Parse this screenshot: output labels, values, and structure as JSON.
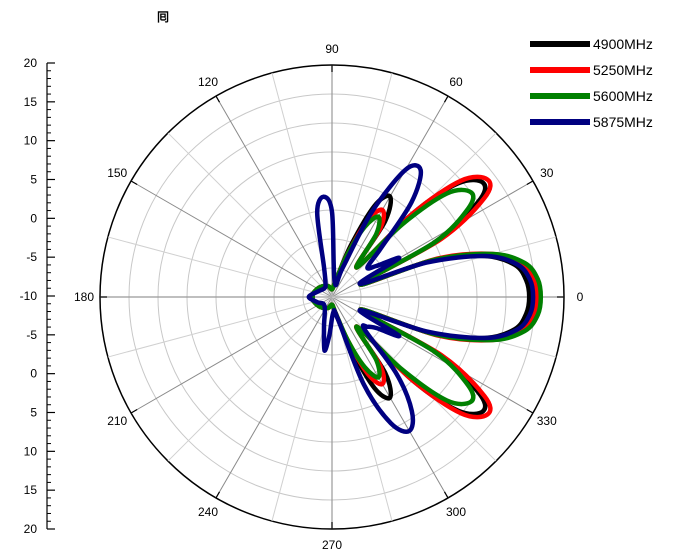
{
  "corner_glyph": "囘",
  "chart_data": {
    "type": "polar-line",
    "radial_axis": {
      "ticks": [
        -10,
        -5,
        0,
        5,
        10,
        15,
        20
      ],
      "range": [
        -10,
        20
      ],
      "tick_labels_left": [
        "20",
        "15",
        "10",
        "5",
        "0",
        "-5",
        "-10",
        "-5",
        "0",
        "5",
        "10",
        "15",
        "20"
      ]
    },
    "angular_axis": {
      "ticks": [
        0,
        30,
        60,
        90,
        120,
        150,
        180,
        210,
        240,
        270,
        300,
        330
      ],
      "unit": "degrees"
    },
    "grid": true,
    "legend_position": "top-right",
    "series": [
      {
        "name": "4900MHz",
        "color": "#000000",
        "points": [
          [
            0,
            15.5
          ],
          [
            5,
            15.2
          ],
          [
            10,
            14
          ],
          [
            15,
            10.5
          ],
          [
            20,
            4
          ],
          [
            24,
            -6
          ],
          [
            28,
            5
          ],
          [
            33,
            12.5
          ],
          [
            37,
            14.5
          ],
          [
            42,
            12
          ],
          [
            46,
            5
          ],
          [
            50,
            -5
          ],
          [
            55,
            2
          ],
          [
            60,
            5
          ],
          [
            65,
            3
          ],
          [
            70,
            -3
          ],
          [
            78,
            -8
          ],
          [
            90,
            -9
          ],
          [
            110,
            -8.5
          ],
          [
            140,
            -8
          ],
          [
            170,
            -7.5
          ],
          [
            180,
            -7.5
          ],
          [
            190,
            -7.5
          ],
          [
            220,
            -8
          ],
          [
            250,
            -8.5
          ],
          [
            270,
            -9
          ],
          [
            282,
            -8
          ],
          [
            290,
            -3
          ],
          [
            295,
            3
          ],
          [
            300,
            5
          ],
          [
            305,
            2
          ],
          [
            310,
            -5
          ],
          [
            314,
            5
          ],
          [
            318,
            12
          ],
          [
            323,
            14.5
          ],
          [
            327,
            12.5
          ],
          [
            332,
            5
          ],
          [
            336,
            -6
          ],
          [
            340,
            4
          ],
          [
            345,
            10.5
          ],
          [
            350,
            14
          ],
          [
            355,
            15.2
          ],
          [
            360,
            15.5
          ]
        ]
      },
      {
        "name": "5250MHz",
        "color": "#ff0000",
        "points": [
          [
            0,
            16.5
          ],
          [
            5,
            16.2
          ],
          [
            10,
            15
          ],
          [
            15,
            11.5
          ],
          [
            20,
            4.5
          ],
          [
            24,
            -6
          ],
          [
            28,
            6
          ],
          [
            33,
            13.5
          ],
          [
            37,
            15.2
          ],
          [
            42,
            12.5
          ],
          [
            46,
            5
          ],
          [
            50,
            -5
          ],
          [
            55,
            1
          ],
          [
            60,
            3
          ],
          [
            65,
            1
          ],
          [
            70,
            -4
          ],
          [
            78,
            -8
          ],
          [
            90,
            -9
          ],
          [
            110,
            -8.5
          ],
          [
            140,
            -8
          ],
          [
            170,
            -7.5
          ],
          [
            180,
            -7.5
          ],
          [
            190,
            -7.5
          ],
          [
            220,
            -8
          ],
          [
            250,
            -8.5
          ],
          [
            270,
            -9
          ],
          [
            282,
            -8
          ],
          [
            290,
            -4
          ],
          [
            295,
            1
          ],
          [
            300,
            3
          ],
          [
            305,
            1
          ],
          [
            310,
            -5
          ],
          [
            314,
            5
          ],
          [
            318,
            12.5
          ],
          [
            323,
            15.2
          ],
          [
            327,
            13.5
          ],
          [
            332,
            6
          ],
          [
            336,
            -6
          ],
          [
            340,
            4.5
          ],
          [
            345,
            11.5
          ],
          [
            350,
            15
          ],
          [
            355,
            16.2
          ],
          [
            360,
            16.5
          ]
        ]
      },
      {
        "name": "5600MHz",
        "color": "#008000",
        "points": [
          [
            0,
            17
          ],
          [
            5,
            16.7
          ],
          [
            10,
            15.3
          ],
          [
            15,
            11.5
          ],
          [
            20,
            4
          ],
          [
            24,
            -6
          ],
          [
            28,
            5
          ],
          [
            33,
            11
          ],
          [
            37,
            12.5
          ],
          [
            42,
            10
          ],
          [
            46,
            3
          ],
          [
            50,
            -5
          ],
          [
            55,
            0
          ],
          [
            60,
            2
          ],
          [
            65,
            0
          ],
          [
            70,
            -4
          ],
          [
            78,
            -8
          ],
          [
            90,
            -9
          ],
          [
            110,
            -8.5
          ],
          [
            140,
            -8
          ],
          [
            170,
            -7.5
          ],
          [
            180,
            -7.5
          ],
          [
            190,
            -7.5
          ],
          [
            220,
            -8
          ],
          [
            250,
            -8.5
          ],
          [
            270,
            -9
          ],
          [
            282,
            -8
          ],
          [
            290,
            -4
          ],
          [
            295,
            0
          ],
          [
            300,
            2
          ],
          [
            305,
            0
          ],
          [
            310,
            -5
          ],
          [
            314,
            3
          ],
          [
            318,
            10
          ],
          [
            323,
            12.5
          ],
          [
            327,
            11
          ],
          [
            332,
            5
          ],
          [
            336,
            -6
          ],
          [
            340,
            4
          ],
          [
            345,
            11.5
          ],
          [
            350,
            15.3
          ],
          [
            355,
            16.7
          ],
          [
            360,
            17
          ]
        ]
      },
      {
        "name": "5875MHz",
        "color": "#000080",
        "points": [
          [
            0,
            16
          ],
          [
            5,
            15.7
          ],
          [
            10,
            14.3
          ],
          [
            15,
            10.5
          ],
          [
            20,
            3
          ],
          [
            25,
            -6
          ],
          [
            30,
            0
          ],
          [
            35,
            -3
          ],
          [
            40,
            -4
          ],
          [
            45,
            -1
          ],
          [
            50,
            6
          ],
          [
            55,
            10
          ],
          [
            60,
            9
          ],
          [
            65,
            2
          ],
          [
            70,
            -6
          ],
          [
            80,
            -8
          ],
          [
            90,
            1
          ],
          [
            95,
            3
          ],
          [
            100,
            1
          ],
          [
            105,
            -6
          ],
          [
            115,
            -8
          ],
          [
            130,
            -8.5
          ],
          [
            160,
            -8
          ],
          [
            180,
            -7
          ],
          [
            200,
            -8
          ],
          [
            230,
            -8.5
          ],
          [
            255,
            -6
          ],
          [
            262,
            -3
          ],
          [
            266,
            -5
          ],
          [
            275,
            -8
          ],
          [
            285,
            -7
          ],
          [
            290,
            2
          ],
          [
            295,
            8
          ],
          [
            300,
            10
          ],
          [
            305,
            8
          ],
          [
            310,
            3
          ],
          [
            315,
            -4
          ],
          [
            320,
            -4
          ],
          [
            325,
            -3
          ],
          [
            330,
            0
          ],
          [
            335,
            -6
          ],
          [
            340,
            3
          ],
          [
            345,
            10.5
          ],
          [
            350,
            14.3
          ],
          [
            355,
            15.7
          ],
          [
            360,
            16
          ]
        ]
      }
    ]
  }
}
